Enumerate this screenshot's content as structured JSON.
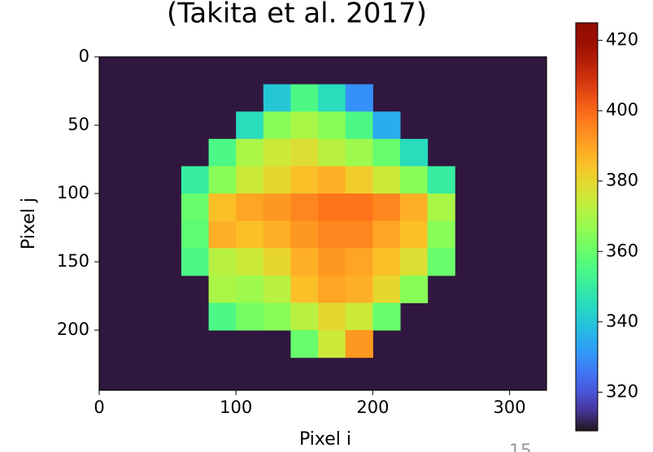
{
  "chart_data": {
    "type": "heatmap",
    "title": "(Takita et al. 2017)",
    "xlabel": "Pixel i",
    "ylabel": "Pixel j",
    "x": [
      10,
      30,
      50,
      70,
      90,
      110,
      130,
      150,
      170,
      190,
      210,
      230,
      250,
      270,
      290,
      310
    ],
    "y": [
      10,
      30,
      50,
      70,
      90,
      110,
      130,
      150,
      170,
      190,
      210,
      230
    ],
    "z": [
      [
        null,
        null,
        null,
        null,
        null,
        null,
        null,
        null,
        null,
        null,
        null,
        null,
        null,
        null,
        null,
        null
      ],
      [
        null,
        null,
        null,
        null,
        null,
        null,
        340,
        355,
        345,
        330,
        null,
        null,
        null,
        null,
        null,
        null
      ],
      [
        null,
        null,
        null,
        null,
        null,
        345,
        365,
        370,
        365,
        355,
        335,
        null,
        null,
        null,
        null,
        null
      ],
      [
        null,
        null,
        null,
        null,
        355,
        370,
        375,
        378,
        372,
        368,
        360,
        345,
        null,
        null,
        null,
        null
      ],
      [
        null,
        null,
        null,
        350,
        365,
        375,
        380,
        385,
        388,
        382,
        375,
        365,
        350,
        null,
        null,
        null
      ],
      [
        null,
        null,
        null,
        360,
        385,
        390,
        392,
        395,
        398,
        398,
        395,
        388,
        370,
        null,
        null,
        null
      ],
      [
        null,
        null,
        null,
        358,
        388,
        385,
        388,
        392,
        395,
        395,
        390,
        385,
        365,
        null,
        null,
        null
      ],
      [
        null,
        null,
        null,
        355,
        372,
        375,
        380,
        388,
        392,
        390,
        385,
        378,
        360,
        null,
        null,
        null
      ],
      [
        null,
        null,
        null,
        null,
        370,
        368,
        372,
        385,
        390,
        388,
        380,
        365,
        null,
        null,
        null,
        null
      ],
      [
        null,
        null,
        null,
        null,
        355,
        362,
        365,
        372,
        380,
        375,
        360,
        null,
        null,
        null,
        null,
        null
      ],
      [
        null,
        null,
        null,
        null,
        null,
        null,
        null,
        360,
        375,
        392,
        null,
        null,
        null,
        null,
        null,
        null
      ],
      [
        null,
        null,
        null,
        null,
        null,
        null,
        null,
        null,
        null,
        null,
        null,
        null,
        null,
        null,
        null,
        null
      ]
    ],
    "xlim": [
      0,
      327
    ],
    "xticks": [
      0,
      100,
      200,
      300
    ],
    "ylim": [
      244,
      0
    ],
    "yticks": [
      0,
      50,
      100,
      150,
      200
    ],
    "colormap": "turbo",
    "facecolor": "#30173f",
    "clim": [
      309,
      425
    ],
    "cticks": [
      320,
      340,
      360,
      380,
      400,
      420
    ]
  },
  "page_number": "15"
}
